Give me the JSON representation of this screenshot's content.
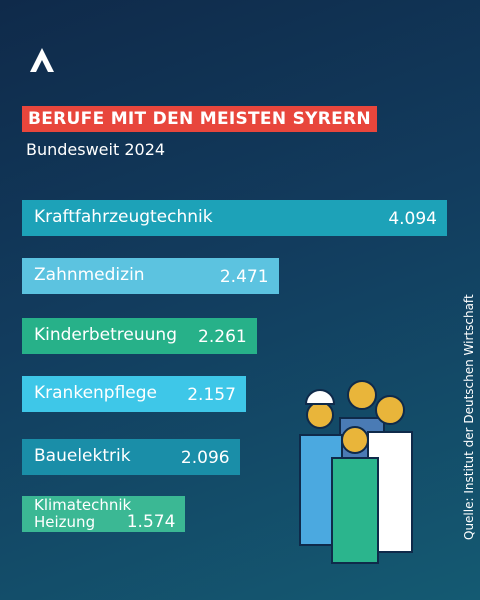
{
  "chart_data": {
    "type": "bar",
    "orientation": "horizontal",
    "title": "BERUFE MIT DEN MEISTEN SYRERN",
    "subtitle": "Bundesweit 2024",
    "source": "Quelle: Institut der Deutschen Wirtschaft",
    "categories": [
      "Kraftfahrzeugtechnik",
      "Zahnmedizin",
      "Kinderbetreuung",
      "Krankenpflege",
      "Bauelektrik",
      "Klimatechnik\nHeizung"
    ],
    "values": [
      4094,
      2471,
      2261,
      2157,
      2096,
      1574
    ],
    "value_labels": [
      "4.094",
      "2.471",
      "2.261",
      "2.157",
      "2.096",
      "1.574"
    ],
    "colors": [
      "#1da2b8",
      "#5cc3e0",
      "#27b189",
      "#3ec7e8",
      "#1a8ea8",
      "#3bb894"
    ]
  }
}
